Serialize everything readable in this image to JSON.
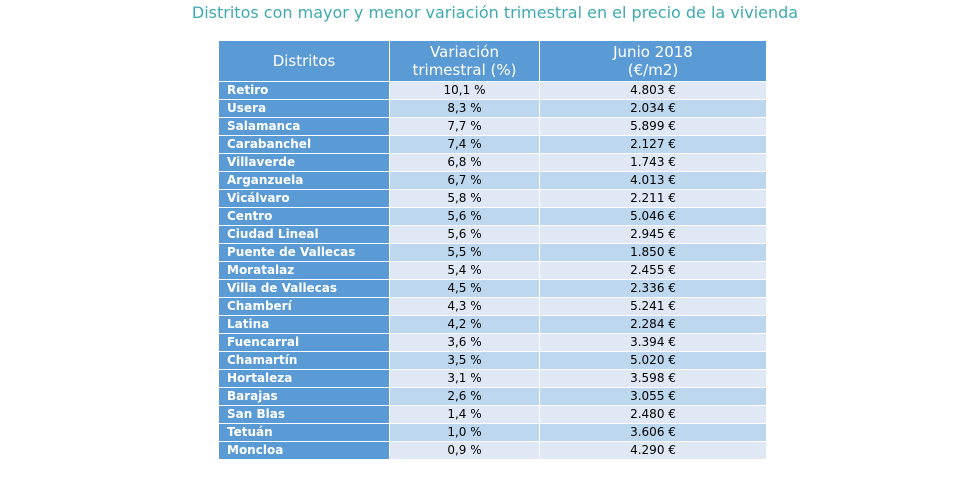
{
  "title": "Distritos con mayor y menor variación trimestral en el precio de la vivienda",
  "table": {
    "headers": {
      "col1": "Distritos",
      "col2_line1": "Variación",
      "col2_line2": "trimestral (%)",
      "col3_line1": "Junio 2018",
      "col3_line2": "(€/m2)"
    },
    "rows": [
      {
        "district": "Retiro",
        "variation": "10,1 %",
        "price": "4.803 €"
      },
      {
        "district": "Usera",
        "variation": "8,3 %",
        "price": "2.034 €"
      },
      {
        "district": "Salamanca",
        "variation": "7,7 %",
        "price": "5.899 €"
      },
      {
        "district": "Carabanchel",
        "variation": "7,4 %",
        "price": "2.127 €"
      },
      {
        "district": "Villaverde",
        "variation": "6,8 %",
        "price": "1.743 €"
      },
      {
        "district": "Arganzuela",
        "variation": "6,7 %",
        "price": "4.013 €"
      },
      {
        "district": "Vicálvaro",
        "variation": "5,8 %",
        "price": "2.211 €"
      },
      {
        "district": "Centro",
        "variation": "5,6 %",
        "price": "5.046 €"
      },
      {
        "district": "Ciudad Lineal",
        "variation": "5,6 %",
        "price": "2.945 €"
      },
      {
        "district": "Puente de Vallecas",
        "variation": "5,5 %",
        "price": "1.850 €"
      },
      {
        "district": "Moratalaz",
        "variation": "5,4 %",
        "price": "2.455 €"
      },
      {
        "district": "Villa de Vallecas",
        "variation": "4,5 %",
        "price": "2.336 €"
      },
      {
        "district": "Chamberí",
        "variation": "4,3 %",
        "price": "5.241 €"
      },
      {
        "district": "Latina",
        "variation": "4,2 %",
        "price": "2.284 €"
      },
      {
        "district": "Fuencarral",
        "variation": "3,6 %",
        "price": "3.394 €"
      },
      {
        "district": "Chamartín",
        "variation": "3,5 %",
        "price": "5.020 €"
      },
      {
        "district": "Hortaleza",
        "variation": "3,1 %",
        "price": "3.598 €"
      },
      {
        "district": "Barajas",
        "variation": "2,6 %",
        "price": "3.055 €"
      },
      {
        "district": "San Blas",
        "variation": "1,4 %",
        "price": "2.480 €"
      },
      {
        "district": "Tetuán",
        "variation": "1,0 %",
        "price": "3.606 €"
      },
      {
        "district": "Moncloa",
        "variation": "0,9 %",
        "price": "4.290 €"
      }
    ]
  },
  "colors": {
    "title": "#3eaab0",
    "header_bg": "#5b9bd5",
    "row_light": "#dfe8f4",
    "row_dark": "#bdd7ee"
  }
}
